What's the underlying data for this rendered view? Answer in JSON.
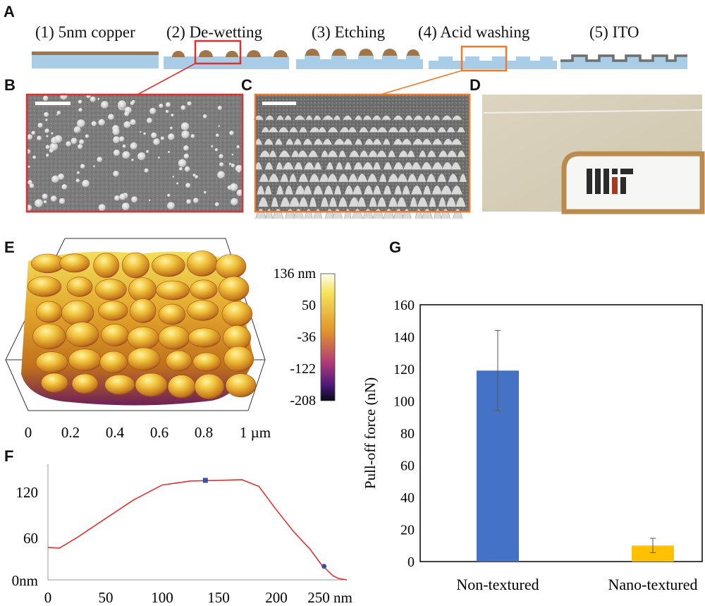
{
  "panels": {
    "a": "A",
    "b": "B",
    "c": "C",
    "d": "D",
    "e": "E",
    "f": "F",
    "g": "G"
  },
  "process_steps": [
    "(1) 5nm copper",
    "(2) De-wetting",
    "(3) Etching",
    "(4) Acid washing",
    "(5) ITO"
  ],
  "colors": {
    "substrate": "#a9cde6",
    "copper": "#a0754a",
    "ito": "#6f6f6f",
    "highlight_red": "#e03030",
    "highlight_orange": "#ee7a2c",
    "bar_non_textured": "#4472c4",
    "bar_nano_textured": "#ffc000",
    "profile_line": "#e03030"
  },
  "logo_text": "MIT",
  "afm": {
    "colorbar_ticks": [
      "136 nm",
      "50",
      "-36",
      "-122",
      "-208"
    ],
    "x_ticks": [
      "0",
      "0.2",
      "0.4",
      "0.6",
      "0.8",
      "1 µm"
    ]
  },
  "profile": {
    "y_ticks": [
      "0nm",
      "60",
      "120"
    ],
    "x_ticks": [
      "0",
      "50",
      "100",
      "150",
      "200",
      "250 nm"
    ],
    "curve": {
      "x": [
        0,
        10,
        25,
        50,
        75,
        100,
        125,
        150,
        170,
        185,
        200,
        215,
        230,
        240,
        250,
        255,
        262
      ],
      "y": [
        48,
        47,
        62,
        90,
        118,
        140,
        146,
        147,
        148,
        138,
        104,
        72,
        45,
        22,
        6,
        2,
        0
      ]
    },
    "markers": [
      {
        "x": 138,
        "y": 147
      },
      {
        "x": 242,
        "y": 20
      }
    ]
  },
  "chart_data": {
    "type": "bar",
    "categories": [
      "Non-textured",
      "Nano-textured"
    ],
    "values": [
      119,
      10
    ],
    "errors": [
      25,
      4.5
    ],
    "ylabel": "Pull-off force (nN)",
    "ylim": [
      0,
      160
    ],
    "yticks": [
      "0",
      "20",
      "40",
      "60",
      "80",
      "100",
      "120",
      "140",
      "160"
    ]
  }
}
